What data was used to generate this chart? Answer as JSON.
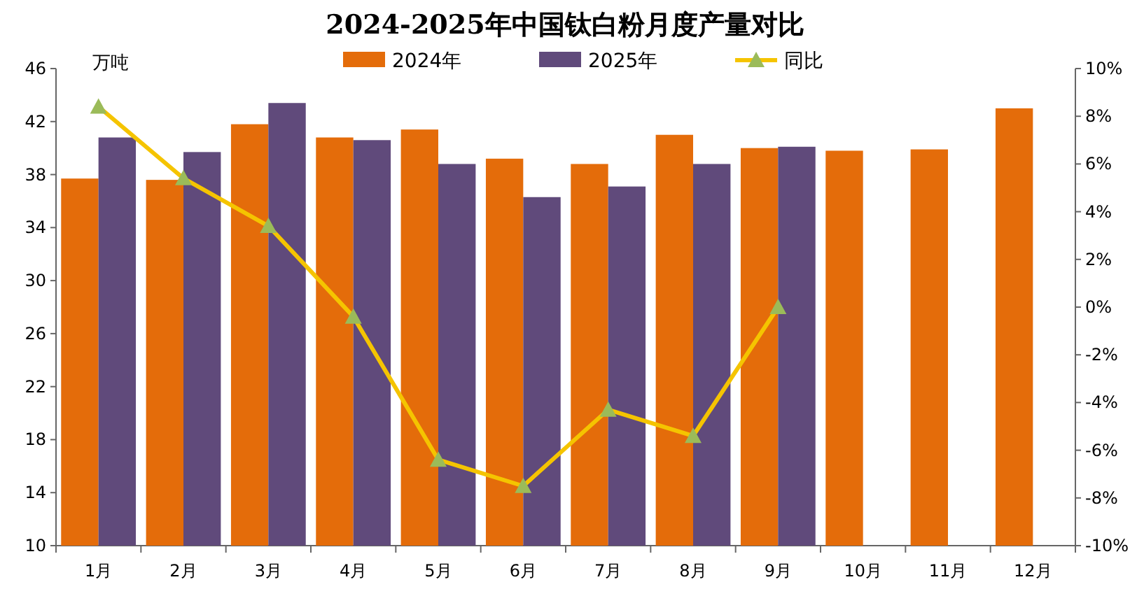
{
  "chart_data": {
    "type": "bar",
    "title": "2024-2025年中国钛白粉月度产量对比",
    "ylabel": "万吨",
    "categories": [
      "1月",
      "2月",
      "3月",
      "4月",
      "5月",
      "6月",
      "7月",
      "8月",
      "9月",
      "10月",
      "11月",
      "12月"
    ],
    "series": [
      {
        "name": "2024年",
        "color": "#e46c0a",
        "values": [
          37.7,
          37.6,
          41.8,
          40.8,
          41.4,
          39.2,
          38.8,
          41.0,
          40.0,
          39.8,
          39.9,
          43.0
        ]
      },
      {
        "name": "2025年",
        "color": "#604a7b",
        "values": [
          40.8,
          39.7,
          43.4,
          40.6,
          38.8,
          36.3,
          37.1,
          38.8,
          40.1,
          null,
          null,
          null
        ]
      },
      {
        "name": "同比",
        "type": "line",
        "axis": "y2",
        "color": "#f5c400",
        "marker": "triangle",
        "values": [
          8.4,
          5.4,
          3.4,
          -0.4,
          -6.4,
          -7.5,
          -4.3,
          -5.4,
          0.0,
          null,
          null,
          null
        ]
      }
    ],
    "ylim": [
      10,
      46
    ],
    "yticks": [
      10,
      14,
      18,
      22,
      26,
      30,
      34,
      38,
      42,
      46
    ],
    "y2lim": [
      -10,
      10
    ],
    "y2ticks": [
      {
        "value": -10,
        "label": "-10%"
      },
      {
        "value": -8,
        "label": "-8%"
      },
      {
        "value": -6,
        "label": "-6%"
      },
      {
        "value": -4,
        "label": "-4%"
      },
      {
        "value": -2,
        "label": "-2%"
      },
      {
        "value": 0,
        "label": "0%"
      },
      {
        "value": 2,
        "label": "2%"
      },
      {
        "value": 4,
        "label": "4%"
      },
      {
        "value": 6,
        "label": "6%"
      },
      {
        "value": 8,
        "label": "8%"
      },
      {
        "value": 10,
        "label": "10%"
      }
    ],
    "legend": "top",
    "grid": false
  }
}
